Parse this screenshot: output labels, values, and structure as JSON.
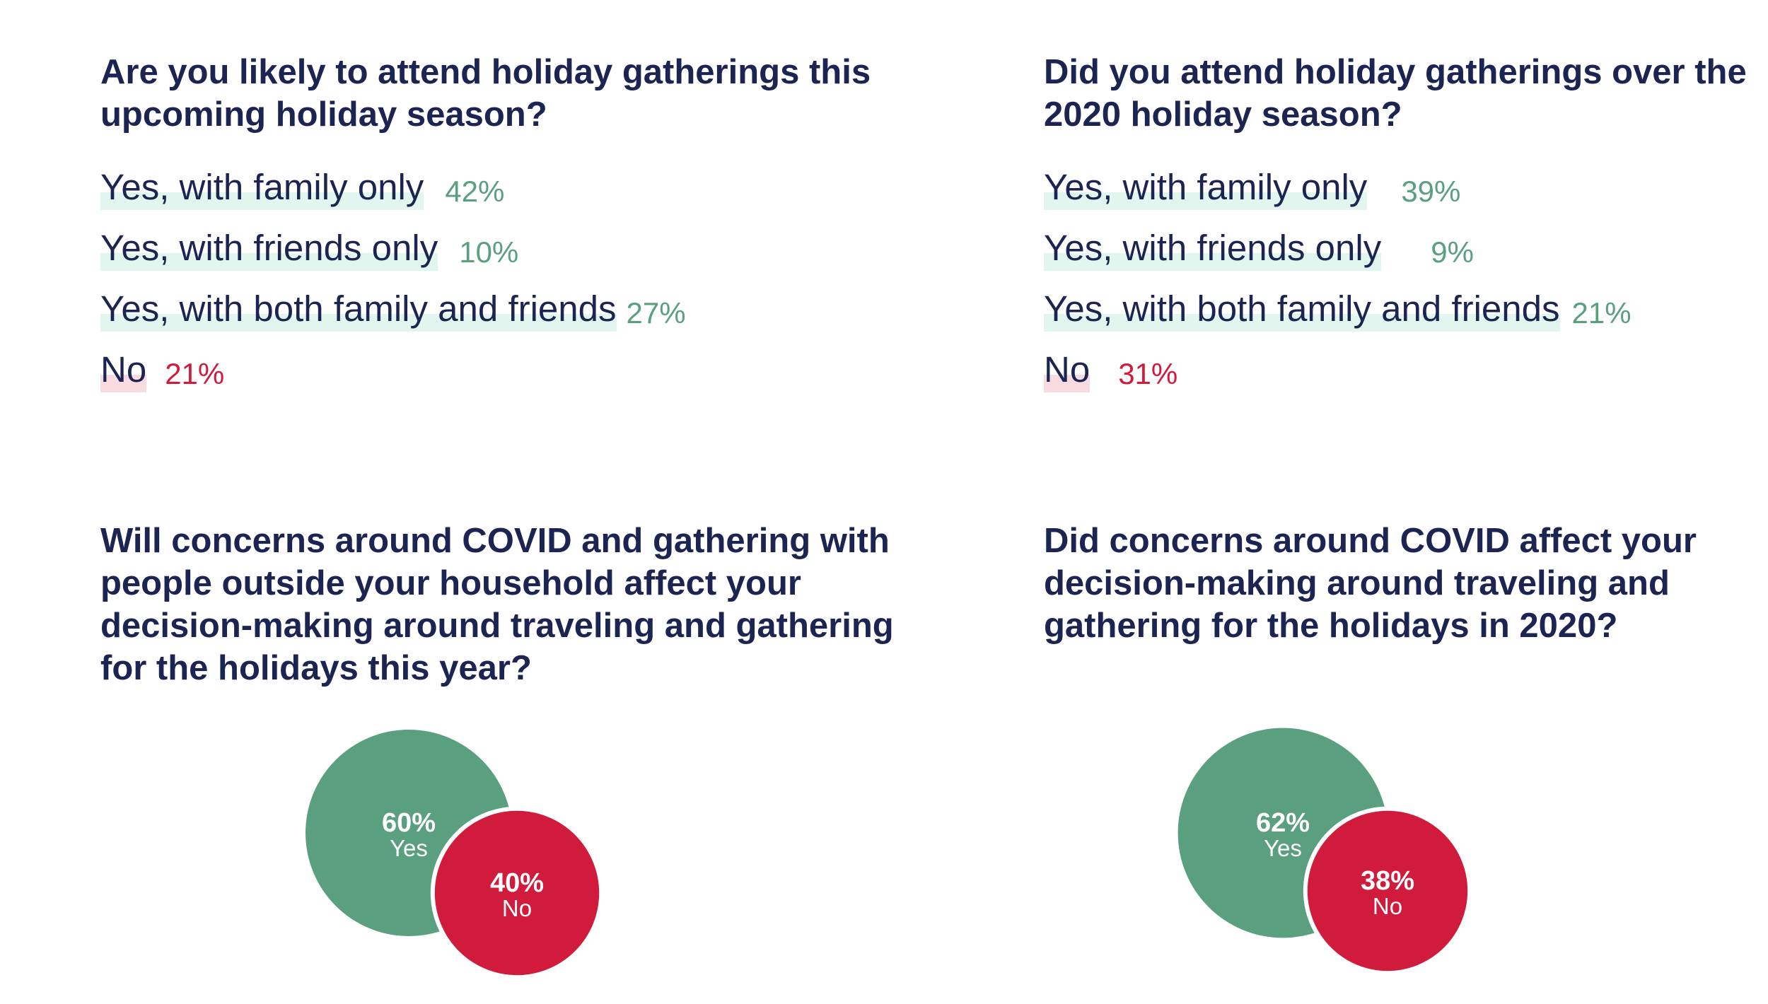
{
  "colors": {
    "text": "#1c2451",
    "yes": "#5a9f7e",
    "no": "#d11b3d",
    "yes_highlight": "#e2f5ef",
    "no_highlight": "#f8dbe0"
  },
  "chart_data": [
    {
      "type": "bar",
      "title": "Are you likely to attend holiday gatherings this upcoming holiday season?",
      "categories": [
        "Yes, with family only",
        "Yes, with friends only",
        "Yes, with both family and friends",
        "No"
      ],
      "values": [
        42,
        10,
        27,
        21
      ],
      "value_labels": [
        "42%",
        "10%",
        "27%",
        "21%"
      ],
      "category_tones": [
        "yes",
        "yes",
        "yes",
        "no"
      ],
      "value_gaps": [
        30,
        30,
        14,
        26
      ]
    },
    {
      "type": "bar",
      "title": "Did you attend holiday gatherings over the 2020 holiday season?",
      "categories": [
        "Yes, with family only",
        "Yes, with friends only",
        "Yes, with both family and friends",
        "No"
      ],
      "values": [
        39,
        9,
        21,
        31
      ],
      "value_labels": [
        "39%",
        "9%",
        "21%",
        "31%"
      ],
      "category_tones": [
        "yes",
        "yes",
        "yes",
        "no"
      ],
      "value_gaps": [
        48,
        70,
        17,
        40
      ]
    },
    {
      "type": "pie",
      "title": "Will concerns around COVID and gathering with people outside your household affect your decision-making around traveling and gathering for the holidays this year?",
      "categories": [
        "Yes",
        "No"
      ],
      "values": [
        60,
        40
      ],
      "value_labels": [
        "60%",
        "40%"
      ]
    },
    {
      "type": "pie",
      "title": "Did concerns around COVID affect your decision-making around traveling and gathering for the holidays in 2020?",
      "categories": [
        "Yes",
        "No"
      ],
      "values": [
        62,
        38
      ],
      "value_labels": [
        "62%",
        "38%"
      ]
    }
  ]
}
